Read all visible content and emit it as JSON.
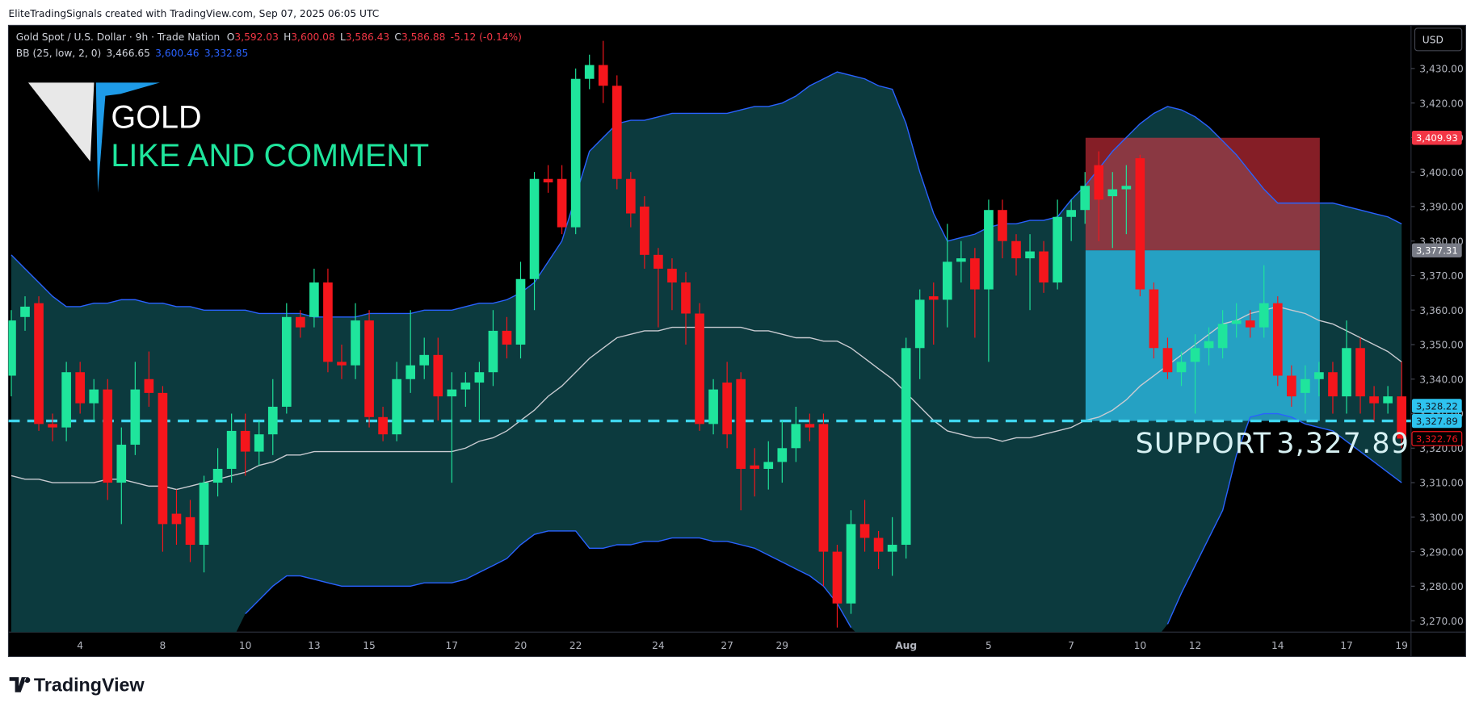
{
  "header": {
    "attribution": "EliteTradingSignals created with TradingView.com, Sep 07, 2025 06:05 UTC",
    "currency": "USD"
  },
  "legend": {
    "symbol": "Gold Spot / U.S. Dollar · 9h · Trade Nation",
    "ohlc": [
      {
        "key": "O",
        "value": "3,592.03"
      },
      {
        "key": "H",
        "value": "3,600.08"
      },
      {
        "key": "L",
        "value": "3,586.43"
      },
      {
        "key": "C",
        "value": "3,586.88"
      }
    ],
    "change": "-5.12 (-0.14%)",
    "indicator": "BB (25, low, 2, 0)",
    "indicator_values": [
      "3,466.65",
      "3,600.46",
      "3,332.85"
    ]
  },
  "banner": {
    "logo_text": "GOLD",
    "call_to_action": "LIKE AND COMMENT"
  },
  "footer": {
    "brand": "TradingView"
  },
  "chart_data": {
    "type": "candlestick",
    "title": "Gold Spot / U.S. Dollar · 9h · Trade Nation",
    "categories": [
      null,
      null,
      null,
      null,
      null,
      "4",
      null,
      null,
      null,
      null,
      null,
      "8",
      null,
      null,
      null,
      null,
      null,
      "10",
      null,
      null,
      null,
      null,
      "13",
      null,
      null,
      null,
      "15",
      null,
      null,
      null,
      null,
      null,
      "17",
      null,
      null,
      null,
      null,
      "20",
      null,
      null,
      null,
      "22",
      null,
      null,
      null,
      null,
      null,
      "24",
      null,
      null,
      null,
      null,
      "27",
      null,
      null,
      null,
      "29",
      null,
      null,
      null,
      null,
      null,
      null,
      null,
      null,
      "Aug",
      null,
      null,
      null,
      null,
      null,
      "5",
      null,
      null,
      null,
      null,
      null,
      "7",
      null,
      null,
      null,
      null,
      "10",
      null,
      null,
      null,
      "12",
      null,
      null,
      null,
      null,
      null,
      "14",
      null,
      null,
      null,
      null,
      "17",
      null,
      null,
      null,
      "19"
    ],
    "open": [
      3341,
      3358,
      3362,
      3327,
      3326,
      3342,
      3333,
      3337,
      3310,
      3321,
      3340,
      3336,
      3301,
      3300,
      3292,
      3310,
      3314,
      3325,
      3319,
      3324,
      3332,
      3358,
      3358,
      3368,
      3345,
      3344,
      3357,
      3329,
      3324,
      3340,
      3344,
      3347,
      3335,
      3337,
      3339,
      3342,
      3354,
      3350,
      3369,
      3398,
      3398,
      3384,
      3427,
      3431,
      3425,
      3398,
      3390,
      3376,
      3372,
      3368,
      3359,
      3327,
      3339,
      3340,
      3315,
      3314,
      3316,
      3320,
      3327,
      3327,
      3290,
      3275,
      3298,
      3294,
      3290,
      3292,
      3349,
      3364,
      3363,
      3374,
      3375,
      3366,
      3389,
      3380,
      3375,
      3377,
      3368,
      3387,
      3389,
      3402,
      3393,
      3395,
      3404,
      3366,
      3349,
      3342,
      3345,
      3349,
      3349,
      3356,
      3357,
      3355,
      3362,
      3341,
      3336,
      3340,
      3342,
      3335,
      3349,
      3335,
      3333,
      3335
    ],
    "high": [
      3360,
      3364,
      3364,
      3330,
      3345,
      3345,
      3340,
      3340,
      3326,
      3345,
      3348,
      3338,
      3308,
      3305,
      3312,
      3320,
      3330,
      3330,
      3328,
      3340,
      3362,
      3360,
      3372,
      3372,
      3350,
      3362,
      3360,
      3332,
      3345,
      3360,
      3352,
      3352,
      3342,
      3342,
      3345,
      3360,
      3358,
      3374,
      3400,
      3402,
      3402,
      3430,
      3434,
      3438,
      3428,
      3400,
      3393,
      3378,
      3375,
      3371,
      3362,
      3340,
      3345,
      3342,
      3320,
      3322,
      3328,
      3332,
      3330,
      3330,
      3292,
      3302,
      3305,
      3296,
      3300,
      3352,
      3366,
      3368,
      3385,
      3380,
      3378,
      3392,
      3392,
      3382,
      3382,
      3380,
      3392,
      3392,
      3400,
      3406,
      3400,
      3402,
      3405,
      3368,
      3352,
      3348,
      3353,
      3355,
      3360,
      3362,
      3360,
      3373,
      3364,
      3344,
      3344,
      3345,
      3345,
      3357,
      3352,
      3338,
      3338,
      3345
    ],
    "low": [
      3335,
      3354,
      3325,
      3322,
      3322,
      3330,
      3328,
      3305,
      3298,
      3318,
      3332,
      3290,
      3292,
      3287,
      3284,
      3306,
      3310,
      3312,
      3315,
      3318,
      3330,
      3352,
      3355,
      3342,
      3340,
      3340,
      3326,
      3322,
      3322,
      3336,
      3340,
      3328,
      3310,
      3332,
      3328,
      3338,
      3346,
      3346,
      3360,
      3394,
      3382,
      3382,
      3424,
      3420,
      3395,
      3384,
      3372,
      3355,
      3360,
      3350,
      3325,
      3324,
      3320,
      3302,
      3306,
      3308,
      3310,
      3316,
      3322,
      3280,
      3268,
      3272,
      3290,
      3285,
      3283,
      3288,
      3340,
      3350,
      3355,
      3368,
      3352,
      3345,
      3375,
      3370,
      3360,
      3365,
      3366,
      3380,
      3385,
      3380,
      3378,
      3382,
      3364,
      3346,
      3340,
      3338,
      3330,
      3344,
      3346,
      3352,
      3352,
      3352,
      3338,
      3332,
      3330,
      3335,
      3330,
      3330,
      3330,
      3328,
      3330,
      3320
    ],
    "close": [
      3357,
      3361,
      3327,
      3326,
      3342,
      3333,
      3337,
      3310,
      3321,
      3337,
      3336,
      3298,
      3298,
      3292,
      3310,
      3314,
      3325,
      3319,
      3324,
      3332,
      3358,
      3355,
      3368,
      3345,
      3344,
      3357,
      3329,
      3324,
      3340,
      3344,
      3347,
      3335,
      3337,
      3339,
      3342,
      3354,
      3350,
      3369,
      3398,
      3397,
      3384,
      3427,
      3431,
      3425,
      3398,
      3388,
      3376,
      3372,
      3368,
      3359,
      3327,
      3337,
      3324,
      3314,
      3314,
      3316,
      3320,
      3327,
      3326,
      3290,
      3275,
      3298,
      3294,
      3290,
      3292,
      3349,
      3363,
      3363,
      3374,
      3375,
      3366,
      3389,
      3380,
      3375,
      3377,
      3368,
      3387,
      3389,
      3396,
      3392,
      3395,
      3396,
      3366,
      3349,
      3342,
      3345,
      3349,
      3351,
      3356,
      3357,
      3355,
      3362,
      3341,
      3335,
      3340,
      3342,
      3335,
      3349,
      3335,
      3333,
      3335,
      3322.76
    ],
    "up_color": "#1fe59c",
    "down_color": "#f5161c",
    "series": [
      {
        "color": "#2962ff",
        "values": [
          3376,
          3372,
          3368,
          3364,
          3361,
          3361,
          3362,
          3362,
          3363,
          3363,
          3362,
          3362,
          3361,
          3361,
          3360,
          3360,
          3360,
          3360,
          3359,
          3359,
          3359,
          3359,
          3358,
          3358,
          3358,
          3358,
          3359,
          3359,
          3359,
          3359,
          3360,
          3360,
          3360,
          3361,
          3362,
          3362,
          3363,
          3365,
          3368,
          3374,
          3380,
          3393,
          3406,
          3410,
          3414,
          3415,
          3415,
          3416,
          3417,
          3417,
          3417,
          3417,
          3417,
          3418,
          3419,
          3419,
          3420,
          3422,
          3425,
          3427,
          3429,
          3428,
          3427,
          3425,
          3424,
          3414,
          3400,
          3388,
          3380,
          3381,
          3382,
          3384,
          3385,
          3385,
          3386,
          3386,
          3387,
          3392,
          3396,
          3401,
          3406,
          3410,
          3414,
          3417,
          3419,
          3418,
          3416,
          3413,
          3409,
          3405,
          3400,
          3395,
          3391,
          3391,
          3391,
          3391,
          3391,
          3390,
          3389,
          3388,
          3387,
          3385
        ]
      },
      {
        "color": "#c9cbd1",
        "values": [
          3312,
          3311,
          3311,
          3310,
          3310,
          3310,
          3310,
          3311,
          3311,
          3310,
          3309,
          3309,
          3308,
          3309,
          3310,
          3311,
          3312,
          3313,
          3315,
          3316,
          3318,
          3318,
          3319,
          3319,
          3319,
          3319,
          3319,
          3319,
          3319,
          3319,
          3319,
          3319,
          3319,
          3320,
          3322,
          3323,
          3325,
          3328,
          3331,
          3335,
          3338,
          3342,
          3346,
          3349,
          3352,
          3353,
          3354,
          3354,
          3355,
          3355,
          3355,
          3355,
          3355,
          3355,
          3354,
          3354,
          3353,
          3352,
          3352,
          3351,
          3351,
          3349,
          3346,
          3343,
          3340,
          3336,
          3332,
          3328,
          3325,
          3324,
          3323,
          3323,
          3322,
          3323,
          3323,
          3324,
          3325,
          3326,
          3328,
          3329,
          3331,
          3334,
          3338,
          3341,
          3344,
          3347,
          3350,
          3353,
          3356,
          3357,
          3359,
          3360,
          3361,
          3360,
          3359,
          3357,
          3356,
          3354,
          3352,
          3350,
          3348,
          3345
        ]
      },
      {
        "color": "#2962ff",
        "values": [
          null,
          null,
          null,
          null,
          null,
          null,
          null,
          null,
          null,
          null,
          null,
          null,
          null,
          null,
          null,
          null,
          null,
          3272,
          3276,
          3280,
          3283,
          3283,
          3282,
          3281,
          3280,
          3280,
          3280,
          3280,
          3280,
          3280,
          3281,
          3281,
          3281,
          3282,
          3284,
          3286,
          3288,
          3292,
          3295,
          3296,
          3296,
          3296,
          3291,
          3291,
          3292,
          3292,
          3293,
          3293,
          3294,
          3294,
          3294,
          3293,
          3293,
          3292,
          3291,
          3289,
          3287,
          3285,
          3283,
          3280,
          3275,
          3268,
          null,
          null,
          null,
          null,
          null,
          null,
          null,
          null,
          null,
          null,
          null,
          null,
          null,
          null,
          null,
          null,
          null,
          null,
          null,
          null,
          null,
          null,
          3269,
          3278,
          3286,
          3294,
          3302,
          3318,
          3329,
          3330,
          3330,
          3329,
          3327,
          3326,
          3325,
          3322,
          3319,
          3316,
          3313,
          3310
        ]
      }
    ],
    "band_fill": "#0c3a3e",
    "ylim": [
      3266.7,
      3442.5
    ],
    "yticks": [
      {
        "value": 3270,
        "label": "3,270.00"
      },
      {
        "value": 3280,
        "label": "3,280.00"
      },
      {
        "value": 3290,
        "label": "3,290.00"
      },
      {
        "value": 3300,
        "label": "3,300.00"
      },
      {
        "value": 3310,
        "label": "3,310.00"
      },
      {
        "value": 3320,
        "label": "3,320.00"
      },
      {
        "value": 3330,
        "label": "3,330.00"
      },
      {
        "value": 3340,
        "label": "3,340.00"
      },
      {
        "value": 3350,
        "label": "3,350.00"
      },
      {
        "value": 3360,
        "label": "3,360.00"
      },
      {
        "value": 3370,
        "label": "3,370.00"
      },
      {
        "value": 3380,
        "label": "3,380.00"
      },
      {
        "value": 3390,
        "label": "3,390.00"
      },
      {
        "value": 3400,
        "label": "3,400.00"
      },
      {
        "value": 3410,
        "label": "3,410.00"
      },
      {
        "value": 3420,
        "label": "3,420.00"
      },
      {
        "value": 3430,
        "label": "3,430.00"
      }
    ],
    "position": {
      "stop": {
        "value": 3409.93,
        "label": "3,409.93",
        "color": "#f23645"
      },
      "entry": {
        "value": 3377.31,
        "label": "3,377.31",
        "color": "#787b86"
      },
      "target": {
        "value": 3327.89,
        "label": "3,327.89",
        "color": "#2ec4f0"
      }
    },
    "support_label": "SUPPORT",
    "price_tags": [
      {
        "value": 3328.22,
        "label": "3,328.22",
        "color": "#2ec4f0",
        "text_color": "#131722"
      },
      {
        "value": 3322.76,
        "label": "3,322.76",
        "color": "#000000",
        "text_color": "#f5161c"
      }
    ]
  }
}
